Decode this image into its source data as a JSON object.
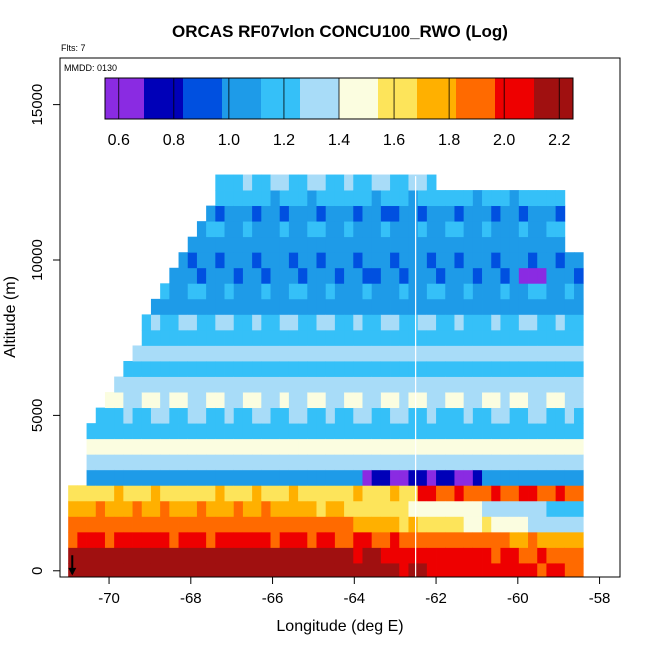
{
  "chart_data": {
    "type": "heatmap",
    "title": "ORCAS RF07vlon CONCU100_RWO (Log)",
    "flts_label": "Flts: 7",
    "mmdd_label": "MMDD: 0130",
    "xlabel": "Longitude (deg E)",
    "ylabel": "Altitude (m)",
    "xlim": [
      -71.2,
      -57.5
    ],
    "ylim": [
      -200,
      16500
    ],
    "xticks": [
      -70,
      -68,
      -66,
      -64,
      -62,
      -60,
      -58
    ],
    "yticks": [
      0,
      5000,
      10000,
      15000
    ],
    "grid": false,
    "colorbar": {
      "placement": "top-inset",
      "range": [
        0.55,
        2.25
      ],
      "ticks": [
        "0.6",
        "0.8",
        "1.0",
        "1.2",
        "1.4",
        "1.6",
        "1.8",
        "2.0",
        "2.2"
      ],
      "tick_values": [
        0.6,
        0.8,
        1.0,
        1.2,
        1.4,
        1.6,
        1.8,
        2.0,
        2.2
      ],
      "colors": [
        "#8a2be2",
        "#0000b8",
        "#0050e0",
        "#1e9be8",
        "#35c0f8",
        "#a8dcf8",
        "#fbfde0",
        "#fde45a",
        "#ffb000",
        "#ff6a00",
        "#ee0000",
        "#a01010"
      ]
    },
    "altitude_levels": [
      0,
      500,
      1000,
      1500,
      2000,
      2500,
      3000,
      3500,
      4000,
      4500,
      5000,
      5500,
      6000,
      6500,
      7000,
      7500,
      8000,
      8500,
      9000,
      9500,
      10000,
      10500,
      11000,
      11500,
      12000,
      12500
    ],
    "series": [
      {
        "values": [
          2.2,
          2.15,
          2.0,
          1.9,
          1.8,
          1.65,
          1.05,
          1.3,
          1.5,
          1.2,
          1.25,
          1.4,
          1.3,
          1.2,
          1.3,
          1.2,
          1.25,
          1.05,
          1.1,
          1.0,
          1.0,
          1.05,
          1.1,
          1.0,
          1.15,
          1.25
        ]
      }
    ],
    "vertical_marker_longitude": -62.5,
    "arrow_longitude": -70.9
  }
}
